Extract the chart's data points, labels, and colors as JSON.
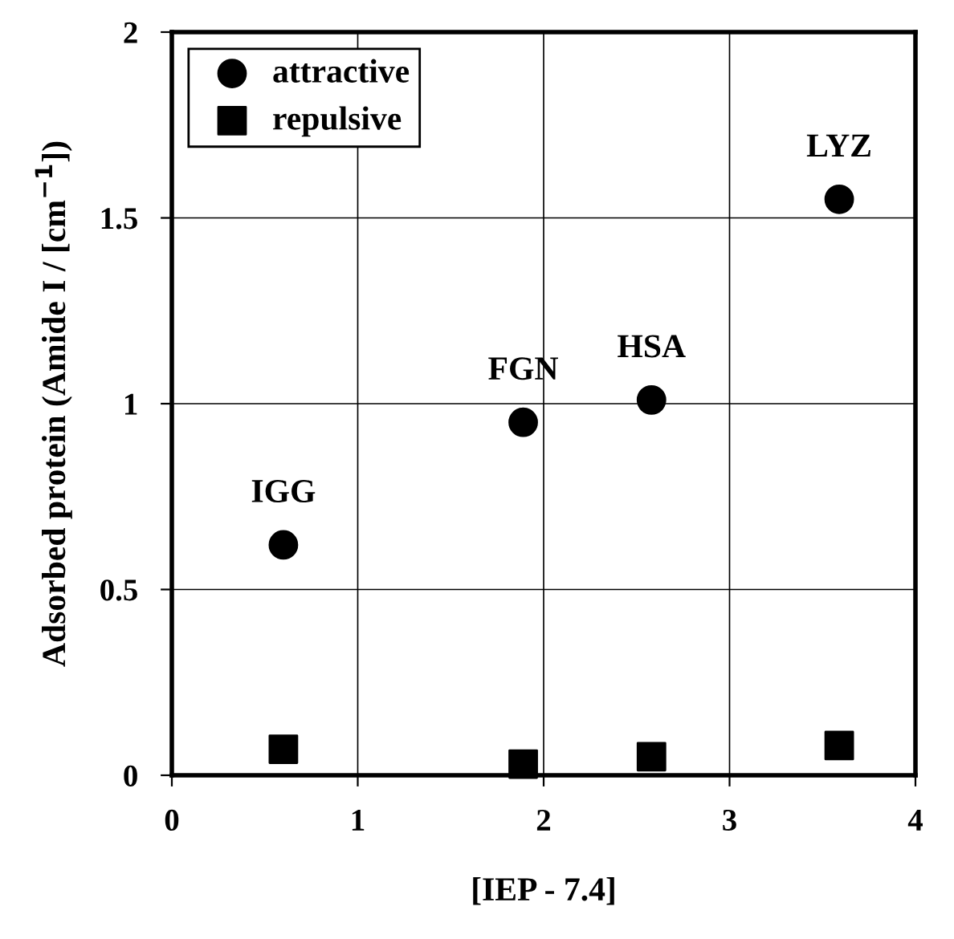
{
  "chart_data": {
    "type": "scatter",
    "xlabel": "[IEP - 7.4]",
    "ylabel": "Adsorbed protein (Amide I / [cm$^{−1}$])",
    "series": [
      {
        "name": "attractive",
        "color": "#000000",
        "marker": "circle",
        "x": [
          0.6,
          1.89,
          2.58,
          3.59
        ],
        "values": [
          0.62,
          0.95,
          1.01,
          1.55
        ]
      },
      {
        "name": "repulsive",
        "color": "#000000",
        "marker": "square",
        "x": [
          0.6,
          1.89,
          2.58,
          3.59
        ],
        "values": [
          0.07,
          0.03,
          0.05,
          0.08
        ]
      }
    ],
    "annotations": [
      {
        "text": "IGG",
        "x": 0.6,
        "y": 0.62
      },
      {
        "text": "FGN",
        "x": 1.89,
        "y": 0.95
      },
      {
        "text": "HSA",
        "x": 2.58,
        "y": 1.01
      },
      {
        "text": "LYZ",
        "x": 3.59,
        "y": 1.55
      }
    ],
    "xlim": [
      0,
      4
    ],
    "ylim": [
      0,
      2
    ],
    "xticks": [
      0,
      1,
      2,
      3,
      4
    ],
    "yticks": [
      0,
      0.5,
      1,
      1.5,
      2
    ],
    "grid": true,
    "legend": "top left"
  }
}
